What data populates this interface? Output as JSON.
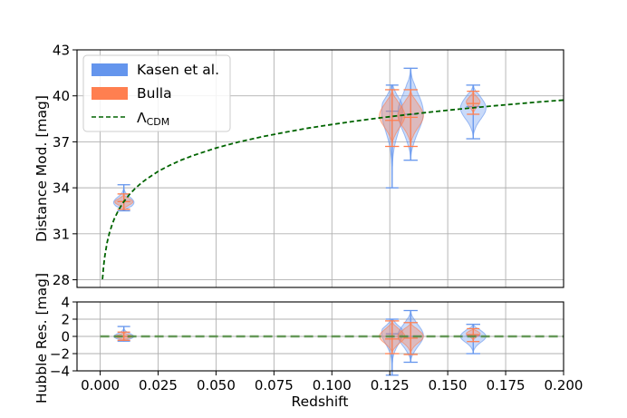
{
  "chart_data": [
    {
      "type": "violin",
      "panel": "top",
      "ylabel": "Distance Mod. [mag]",
      "xlabel": "",
      "xlim": [
        -0.01,
        0.2
      ],
      "ylim": [
        27.5,
        43
      ],
      "yticks": [
        28,
        31,
        34,
        37,
        40,
        43
      ],
      "ytick_labels": [
        "28",
        "31",
        "34",
        "37",
        "40",
        "43"
      ],
      "grid": true,
      "legend_position": "upper-left",
      "series": [
        {
          "name": "Kasen et al.",
          "kind": "violin",
          "color": "#6495ED",
          "violins": [
            {
              "x": 0.0102,
              "min": 32.5,
              "max": 34.2,
              "median": 33.1,
              "width": 0.0088,
              "peak": 33.05
            },
            {
              "x": 0.126,
              "min": 34.0,
              "max": 40.7,
              "median": 39.0,
              "width": 0.009,
              "peak": 39.0
            },
            {
              "x": 0.134,
              "min": 35.8,
              "max": 41.8,
              "median": 38.8,
              "width": 0.011,
              "peak": 38.9
            },
            {
              "x": 0.161,
              "min": 37.2,
              "max": 40.7,
              "median": 39.3,
              "width": 0.011,
              "peak": 39.2
            }
          ]
        },
        {
          "name": "Bulla",
          "kind": "violin",
          "color": "#FF7F50",
          "violins": [
            {
              "x": 0.0102,
              "min": 32.6,
              "max": 33.6,
              "median": 33.1,
              "width": 0.0078,
              "peak": 33.08
            },
            {
              "x": 0.126,
              "min": 36.7,
              "max": 40.4,
              "median": 38.4,
              "width": 0.011,
              "peak": 38.7
            },
            {
              "x": 0.134,
              "min": 36.7,
              "max": 40.4,
              "median": 38.6,
              "width": 0.011,
              "peak": 38.7
            },
            {
              "x": 0.161,
              "min": 38.8,
              "max": 40.3,
              "median": 39.5,
              "width": 0.006,
              "peak": 39.6
            }
          ]
        },
        {
          "name": "Λ_CDM",
          "kind": "line",
          "style": "dashed",
          "color": "#006400",
          "x": [
            0.001,
            0.0015,
            0.002,
            0.003,
            0.004,
            0.005,
            0.006,
            0.008,
            0.01,
            0.0125,
            0.015,
            0.0175,
            0.02,
            0.025,
            0.03,
            0.035,
            0.04,
            0.05,
            0.06,
            0.07,
            0.08,
            0.09,
            0.1,
            0.11,
            0.12,
            0.13,
            0.14,
            0.15,
            0.16,
            0.17,
            0.18,
            0.19,
            0.2
          ],
          "y": [
            28.04,
            28.92,
            29.55,
            30.43,
            31.06,
            31.54,
            31.94,
            32.57,
            33.05,
            33.54,
            33.94,
            34.28,
            34.57,
            35.07,
            35.47,
            35.81,
            36.1,
            36.6,
            37.0,
            37.34,
            37.63,
            37.9,
            38.13,
            38.35,
            38.55,
            38.73,
            38.9,
            39.06,
            39.21,
            39.35,
            39.48,
            39.61,
            39.72
          ]
        }
      ]
    },
    {
      "type": "violin",
      "panel": "bottom",
      "ylabel": "Hubble Res. [mag]",
      "xlabel": "Redshift",
      "xlim": [
        -0.01,
        0.2
      ],
      "ylim": [
        -4,
        4
      ],
      "yticks": [
        -4,
        -2,
        0,
        2,
        4
      ],
      "ytick_labels": [
        "−4",
        "−2",
        "0",
        "2",
        "4"
      ],
      "xticks": [
        0.0,
        0.025,
        0.05,
        0.075,
        0.1,
        0.125,
        0.15,
        0.175,
        0.2
      ],
      "xtick_labels": [
        "0.000",
        "0.025",
        "0.050",
        "0.075",
        "0.100",
        "0.125",
        "0.150",
        "0.175",
        "0.200"
      ],
      "grid": true,
      "series": [
        {
          "name": "Kasen et al.",
          "kind": "violin",
          "color": "#6495ED",
          "violins": [
            {
              "x": 0.0102,
              "min": -0.55,
              "max": 1.15,
              "median": 0.0,
              "width": 0.0085,
              "peak": 0.0
            },
            {
              "x": 0.126,
              "min": -4.5,
              "max": 2.0,
              "median": 0.3,
              "width": 0.009,
              "peak": 0.4
            },
            {
              "x": 0.134,
              "min": -3.0,
              "max": 3.0,
              "median": 0.0,
              "width": 0.011,
              "peak": 0.1
            },
            {
              "x": 0.161,
              "min": -2.0,
              "max": 1.4,
              "median": 0.1,
              "width": 0.011,
              "peak": 0.0
            }
          ]
        },
        {
          "name": "Bulla",
          "kind": "violin",
          "color": "#FF7F50",
          "violins": [
            {
              "x": 0.0102,
              "min": -0.45,
              "max": 0.5,
              "median": 0.0,
              "width": 0.0075,
              "peak": 0.0
            },
            {
              "x": 0.126,
              "min": -2.0,
              "max": 1.8,
              "median": -0.3,
              "width": 0.011,
              "peak": 0.0
            },
            {
              "x": 0.134,
              "min": -2.1,
              "max": 1.6,
              "median": -0.2,
              "width": 0.011,
              "peak": 0.0
            },
            {
              "x": 0.161,
              "min": -0.6,
              "max": 0.9,
              "median": 0.2,
              "width": 0.006,
              "peak": 0.3
            }
          ]
        },
        {
          "name": "Λ_CDM",
          "kind": "line",
          "style": "dashed",
          "color": "#4a8a3a",
          "x": [
            0.0,
            0.2
          ],
          "y": [
            0,
            0
          ]
        }
      ]
    }
  ],
  "legend": {
    "entries": [
      {
        "label": "Kasen et al.",
        "color": "#6495ED",
        "kind": "patch"
      },
      {
        "label": "Bulla",
        "color": "#FF7F50",
        "kind": "patch"
      },
      {
        "label": "Λ",
        "sub": "CDM",
        "color": "#006400",
        "kind": "dashed-line"
      }
    ]
  }
}
